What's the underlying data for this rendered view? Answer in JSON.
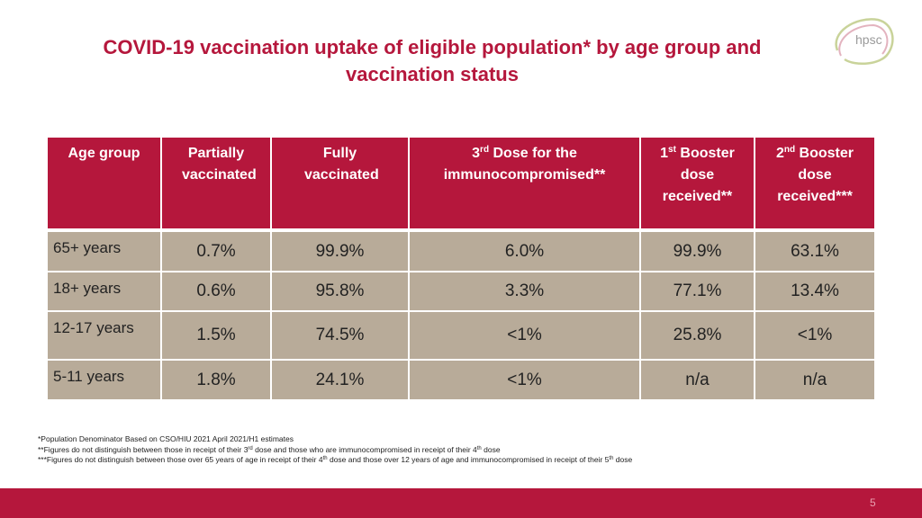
{
  "title": {
    "line1": "COVID-19 vaccination uptake of eligible population* by age group and",
    "line2": "vaccination status"
  },
  "logo": {
    "text": "hpsc"
  },
  "table": {
    "headers": [
      {
        "main": "Age group"
      },
      {
        "main": "Partially vaccinated"
      },
      {
        "main": "Fully vaccinated"
      },
      {
        "pre": "3",
        "sup": "rd",
        "post": " Dose  for the immunocompromised**"
      },
      {
        "pre": "1",
        "sup": "st",
        "post": " Booster dose received**"
      },
      {
        "pre": "2",
        "sup": "nd",
        "post": " Booster dose received***"
      }
    ],
    "rows": [
      [
        "65+ years",
        "0.7%",
        "99.9%",
        "6.0%",
        "99.9%",
        "63.1%"
      ],
      [
        "18+ years",
        "0.6%",
        "95.8%",
        "3.3%",
        "77.1%",
        "13.4%"
      ],
      [
        "12-17 years",
        "1.5%",
        "74.5%",
        "<1%",
        "25.8%",
        "<1%"
      ],
      [
        "5-11 years",
        "1.8%",
        "24.1%",
        "<1%",
        "n/a",
        "n/a"
      ]
    ]
  },
  "footnotes": {
    "f1": "*Population Denominator Based on CSO/HIU 2021 April 2021/H1 estimates",
    "f2a": "**Figures do not distinguish between those in receipt of their 3",
    "f2sup1": "rd",
    "f2b": " dose and those who are immunocompromised in receipt of their 4",
    "f2sup2": "th",
    "f2c": " dose",
    "f3a": "***Figures do not distinguish between those over 65 years of age in receipt of their 4",
    "f3sup1": "th",
    "f3b": " dose and those over 12 years of age and immunocompromised in receipt of their 5",
    "f3sup2": "th",
    "f3c": " dose"
  },
  "page_number": "5",
  "colors": {
    "accent": "#b5173c",
    "row_bg": "#b8ab99"
  }
}
